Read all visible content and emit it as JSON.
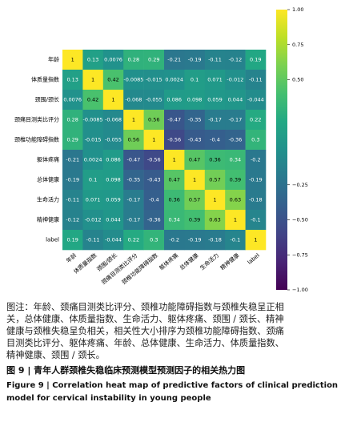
{
  "chart_data": {
    "type": "heatmap",
    "labels": [
      "年龄",
      "体质量指数",
      "颈围/颈长",
      "颈痛目测类比评分",
      "颈椎功能障碍指数",
      "躯体疼痛",
      "总体健康",
      "生命活力",
      "精神健康",
      "label"
    ],
    "matrix": [
      [
        1,
        0.13,
        0.0076,
        0.28,
        0.29,
        -0.21,
        -0.19,
        -0.11,
        -0.12,
        0.19
      ],
      [
        0.13,
        1,
        0.42,
        -0.0085,
        -0.015,
        0.0024,
        0.1,
        0.071,
        -0.012,
        -0.11
      ],
      [
        0.0076,
        0.42,
        1,
        -0.068,
        -0.055,
        0.086,
        0.098,
        0.059,
        0.044,
        -0.044
      ],
      [
        0.28,
        -0.0085,
        -0.068,
        1,
        0.56,
        -0.47,
        -0.35,
        -0.17,
        -0.17,
        0.22
      ],
      [
        0.29,
        -0.015,
        -0.055,
        0.56,
        1,
        -0.56,
        -0.43,
        -0.4,
        -0.36,
        0.3
      ],
      [
        -0.21,
        0.0024,
        0.086,
        -0.47,
        -0.56,
        1,
        0.47,
        0.36,
        0.34,
        -0.2
      ],
      [
        -0.19,
        0.1,
        0.098,
        -0.35,
        -0.43,
        0.47,
        1,
        0.57,
        0.39,
        -0.19
      ],
      [
        -0.11,
        0.071,
        0.059,
        -0.17,
        -0.4,
        0.36,
        0.57,
        1,
        0.63,
        -0.18
      ],
      [
        -0.12,
        -0.012,
        0.044,
        -0.17,
        -0.36,
        0.34,
        0.39,
        0.63,
        1,
        -0.1
      ],
      [
        0.19,
        -0.11,
        -0.044,
        0.22,
        0.3,
        -0.2,
        -0.19,
        -0.18,
        -0.1,
        1
      ]
    ],
    "colormap": "viridis",
    "clim": [
      -1,
      1
    ],
    "cticks": [
      {
        "value": 1,
        "label": "1.00"
      },
      {
        "value": 0.75,
        "label": "0.75"
      },
      {
        "value": 0.5,
        "label": "0.50"
      },
      {
        "value": -0.25,
        "label": "−0.25"
      },
      {
        "value": -0.5,
        "label": "−0.50"
      },
      {
        "value": -0.75,
        "label": "−0.75"
      },
      {
        "value": -1,
        "label": "−1.00"
      }
    ]
  },
  "caption": {
    "note_lines": [
      "图注：年龄、颈痛目测类比评分、颈椎功能障碍指数与颈椎失稳呈正相",
      "关，总体健康、体质量指数、生命活力、躯体疼痛、颈围 / 颈长、精神",
      "健康与颈椎失稳呈负相关，相关性大小排序为颈椎功能障碍指数、颈痛",
      "目测类比评分、躯体疼痛、年龄、总体健康、生命活力、体质量指数、",
      "精神健康、颈围 / 颈长。"
    ],
    "title_zh": "图 9 | 青年人群颈椎失稳临床预测模型预测因子的相关热力图",
    "title_en_lines": [
      "Figure 9 | Correlation heat map of predictive factors of clinical prediction",
      "model for cervical instability in young people"
    ]
  }
}
